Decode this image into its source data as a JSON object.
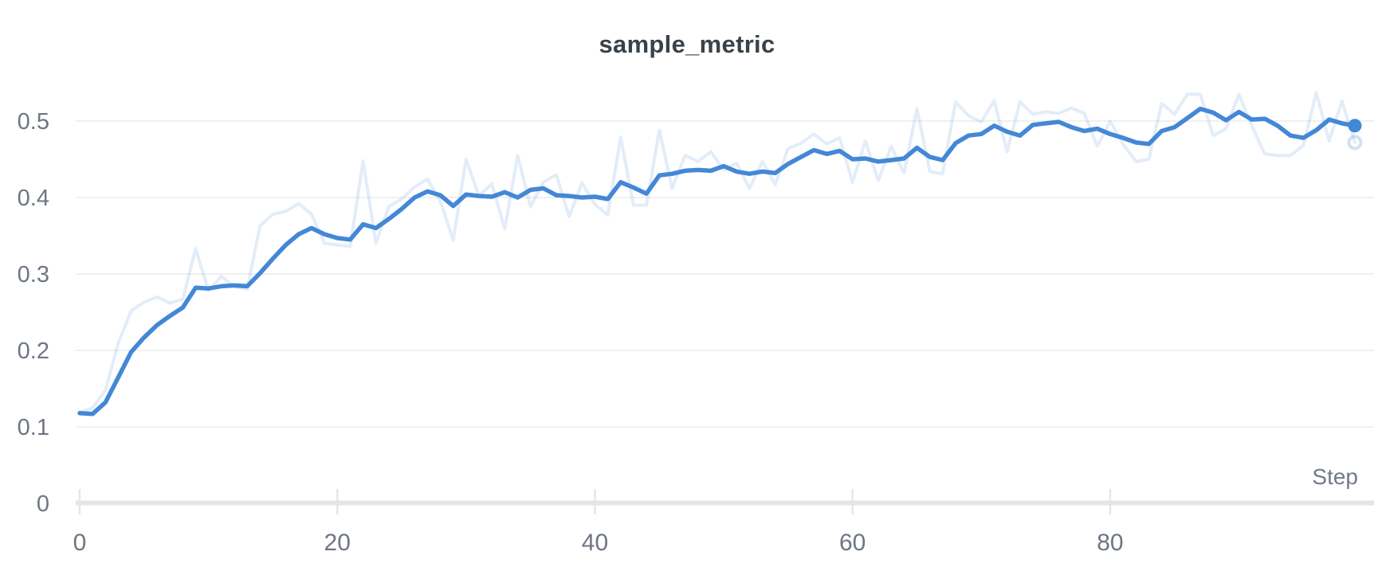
{
  "title": "sample_metric",
  "colors": {
    "accent": "#4387d7",
    "gridline": "#e8e8ea",
    "axis_bar": "#e5e5e8",
    "tick_label": "#6d7682",
    "title_text": "#394249",
    "background": "#ffffff"
  },
  "chart_data": {
    "type": "line",
    "title": "sample_metric",
    "xlabel": "Step",
    "ylabel": "",
    "x_ticks": [
      0,
      20,
      40,
      60,
      80
    ],
    "y_ticks": [
      0,
      0.1,
      0.2,
      0.3,
      0.4,
      0.5
    ],
    "xlim": [
      0,
      99
    ],
    "ylim": [
      0,
      0.555
    ],
    "grid": "horizontal",
    "legend": "none",
    "x": [
      0,
      1,
      2,
      3,
      4,
      5,
      6,
      7,
      8,
      9,
      10,
      11,
      12,
      13,
      14,
      15,
      16,
      17,
      18,
      19,
      20,
      21,
      22,
      23,
      24,
      25,
      26,
      27,
      28,
      29,
      30,
      31,
      32,
      33,
      34,
      35,
      36,
      37,
      38,
      39,
      40,
      41,
      42,
      43,
      44,
      45,
      46,
      47,
      48,
      49,
      50,
      51,
      52,
      53,
      54,
      55,
      56,
      57,
      58,
      59,
      60,
      61,
      62,
      63,
      64,
      65,
      66,
      67,
      68,
      69,
      70,
      71,
      72,
      73,
      74,
      75,
      76,
      77,
      78,
      79,
      80,
      81,
      82,
      83,
      84,
      85,
      86,
      87,
      88,
      89,
      90,
      91,
      92,
      93,
      94,
      95,
      96,
      97,
      98,
      99
    ],
    "series": [
      {
        "name": "sample_metric (original)",
        "role": "original",
        "color": "#4387d7",
        "opacity": 0.15,
        "stroke_width": 4,
        "end_marker": "ring",
        "values": [
          0.119,
          0.125,
          0.148,
          0.21,
          0.252,
          0.263,
          0.27,
          0.262,
          0.267,
          0.333,
          0.278,
          0.297,
          0.284,
          0.28,
          0.363,
          0.378,
          0.382,
          0.392,
          0.378,
          0.34,
          0.338,
          0.336,
          0.448,
          0.34,
          0.388,
          0.398,
          0.414,
          0.424,
          0.395,
          0.344,
          0.45,
          0.402,
          0.418,
          0.359,
          0.455,
          0.388,
          0.42,
          0.43,
          0.375,
          0.419,
          0.391,
          0.377,
          0.479,
          0.39,
          0.39,
          0.488,
          0.412,
          0.455,
          0.447,
          0.46,
          0.436,
          0.445,
          0.412,
          0.447,
          0.417,
          0.464,
          0.471,
          0.483,
          0.47,
          0.478,
          0.42,
          0.474,
          0.422,
          0.467,
          0.432,
          0.516,
          0.434,
          0.431,
          0.525,
          0.507,
          0.499,
          0.527,
          0.46,
          0.525,
          0.509,
          0.512,
          0.51,
          0.517,
          0.51,
          0.467,
          0.5,
          0.47,
          0.447,
          0.45,
          0.523,
          0.509,
          0.535,
          0.535,
          0.481,
          0.49,
          0.535,
          0.494,
          0.457,
          0.455,
          0.455,
          0.468,
          0.537,
          0.474,
          0.526,
          0.472
        ]
      },
      {
        "name": "sample_metric (smoothed)",
        "role": "smoothed",
        "color": "#4387d7",
        "opacity": 1,
        "stroke_width": 5.5,
        "end_marker": "dot",
        "values": [
          0.118,
          0.117,
          0.132,
          0.165,
          0.198,
          0.217,
          0.233,
          0.245,
          0.256,
          0.282,
          0.281,
          0.284,
          0.285,
          0.284,
          0.301,
          0.32,
          0.338,
          0.352,
          0.36,
          0.352,
          0.347,
          0.345,
          0.365,
          0.36,
          0.372,
          0.385,
          0.4,
          0.408,
          0.403,
          0.389,
          0.404,
          0.402,
          0.401,
          0.407,
          0.4,
          0.41,
          0.412,
          0.403,
          0.402,
          0.4,
          0.401,
          0.398,
          0.42,
          0.413,
          0.405,
          0.429,
          0.431,
          0.435,
          0.436,
          0.435,
          0.441,
          0.434,
          0.431,
          0.434,
          0.432,
          0.444,
          0.453,
          0.462,
          0.457,
          0.461,
          0.45,
          0.451,
          0.447,
          0.449,
          0.451,
          0.465,
          0.453,
          0.449,
          0.471,
          0.481,
          0.483,
          0.494,
          0.486,
          0.481,
          0.495,
          0.497,
          0.499,
          0.492,
          0.487,
          0.49,
          0.483,
          0.478,
          0.472,
          0.47,
          0.487,
          0.492,
          0.504,
          0.516,
          0.511,
          0.501,
          0.512,
          0.502,
          0.503,
          0.494,
          0.481,
          0.478,
          0.488,
          0.502,
          0.497,
          0.494
        ]
      }
    ]
  }
}
